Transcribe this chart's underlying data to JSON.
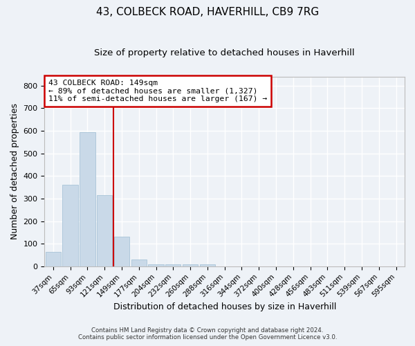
{
  "title": "43, COLBECK ROAD, HAVERHILL, CB9 7RG",
  "subtitle": "Size of property relative to detached houses in Haverhill",
  "xlabel": "Distribution of detached houses by size in Haverhill",
  "ylabel": "Number of detached properties",
  "categories": [
    "37sqm",
    "65sqm",
    "93sqm",
    "121sqm",
    "149sqm",
    "177sqm",
    "204sqm",
    "232sqm",
    "260sqm",
    "288sqm",
    "316sqm",
    "344sqm",
    "372sqm",
    "400sqm",
    "428sqm",
    "456sqm",
    "483sqm",
    "511sqm",
    "539sqm",
    "567sqm",
    "595sqm"
  ],
  "values": [
    65,
    360,
    595,
    315,
    130,
    30,
    10,
    10,
    10,
    10,
    0,
    0,
    0,
    0,
    0,
    0,
    0,
    0,
    0,
    0,
    0
  ],
  "bar_color": "#c9d9e8",
  "bar_edgecolor": "#a8c4d8",
  "vline_x_idx": 4,
  "vline_color": "#cc0000",
  "ylim": [
    0,
    840
  ],
  "yticks": [
    0,
    100,
    200,
    300,
    400,
    500,
    600,
    700,
    800
  ],
  "annotation_line1": "43 COLBECK ROAD: 149sqm",
  "annotation_line2": "← 89% of detached houses are smaller (1,327)",
  "annotation_line3": "11% of semi-detached houses are larger (167) →",
  "annotation_box_facecolor": "#ffffff",
  "annotation_box_edgecolor": "#cc0000",
  "background_color": "#eef2f7",
  "grid_color": "#ffffff",
  "title_fontsize": 11,
  "subtitle_fontsize": 9.5,
  "axis_label_fontsize": 9,
  "tick_fontsize": 7.5,
  "ytick_fontsize": 8,
  "footer_line1": "Contains HM Land Registry data © Crown copyright and database right 2024.",
  "footer_line2": "Contains public sector information licensed under the Open Government Licence v3.0."
}
